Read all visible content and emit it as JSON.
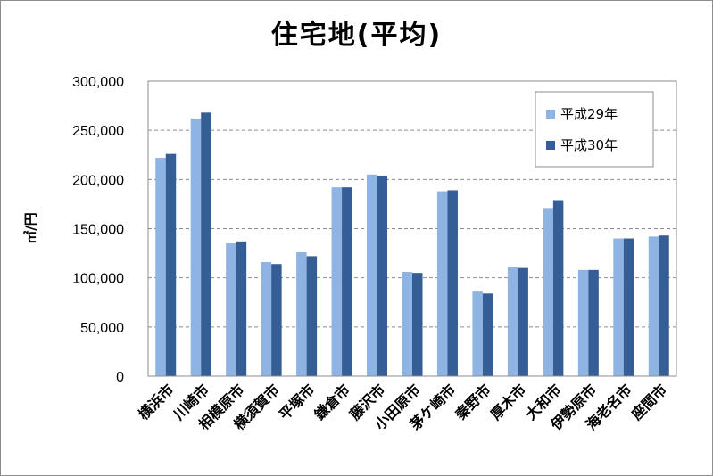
{
  "chart_data": {
    "type": "bar",
    "title": "住宅地(平均)",
    "ylabel": "㎡/円",
    "ylim": [
      0,
      300000
    ],
    "yticks": [
      "0",
      "50,000",
      "100,000",
      "150,000",
      "200,000",
      "250,000",
      "300,000"
    ],
    "ytick_values": [
      0,
      50000,
      100000,
      150000,
      200000,
      250000,
      300000
    ],
    "grid": true,
    "legend_position": "top-right",
    "categories": [
      "横浜市",
      "川崎市",
      "相模原市",
      "横須賀市",
      "平塚市",
      "鎌倉市",
      "藤沢市",
      "小田原市",
      "茅ケ崎市",
      "秦野市",
      "厚木市",
      "大和市",
      "伊勢原市",
      "海老名市",
      "座間市"
    ],
    "series": [
      {
        "name": "平成29年",
        "color": "#8eb4e3",
        "values": [
          222000,
          262000,
          135000,
          116000,
          126000,
          192000,
          205000,
          106000,
          188000,
          86000,
          111000,
          171000,
          108000,
          140000,
          142000
        ]
      },
      {
        "name": "平成30年",
        "color": "#355d96",
        "values": [
          226000,
          268000,
          137000,
          114000,
          122000,
          192000,
          204000,
          105000,
          189000,
          84000,
          110000,
          179000,
          108000,
          140000,
          143000
        ]
      }
    ]
  }
}
